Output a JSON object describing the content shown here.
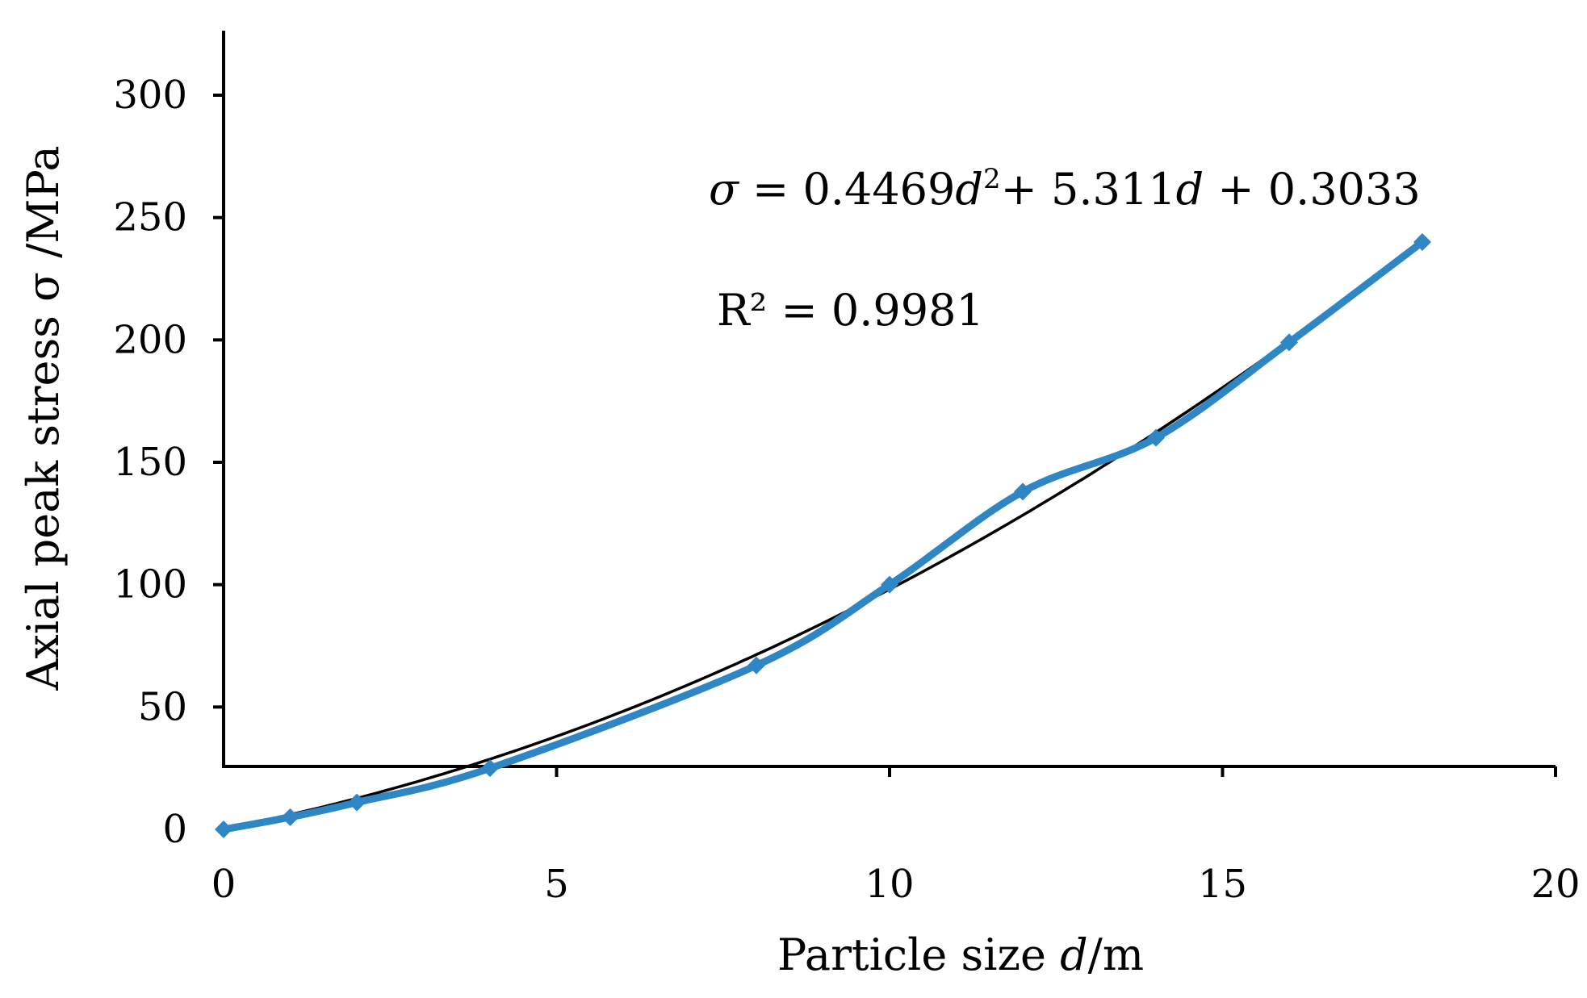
{
  "chart_data": {
    "type": "line",
    "title": "",
    "xlabel": "Particle size d/m",
    "ylabel": "Axial peak stress  σ /MPa",
    "xlim": [
      0,
      20
    ],
    "ylim": [
      0,
      300
    ],
    "x_ticks": [
      "0",
      "5",
      "10",
      "15",
      "20"
    ],
    "y_ticks": [
      "0",
      "50",
      "100",
      "150",
      "200",
      "250",
      "300"
    ],
    "grid": false,
    "legend": "none",
    "series": [
      {
        "kind": "measured",
        "color": "#2F86C4",
        "marker": "diamond",
        "x": [
          0,
          1,
          2,
          4,
          8,
          10,
          12,
          14,
          16,
          18
        ],
        "y": [
          0,
          5,
          11,
          25,
          67,
          100,
          138,
          160,
          199,
          240
        ]
      },
      {
        "kind": "trendline",
        "color": "#000000",
        "fit": "polynomial-2",
        "coefficients": [
          0.4469,
          5.311,
          0.3033
        ]
      }
    ],
    "annotations": {
      "equation": {
        "sigma": "σ",
        "eq_a": " = 0.4469",
        "d1": "d",
        "sup2": "2",
        "eq_b": "+ 5.311",
        "d2": "d",
        "eq_c": " + 0.3033"
      },
      "r_squared": "R² = 0.9981"
    }
  }
}
